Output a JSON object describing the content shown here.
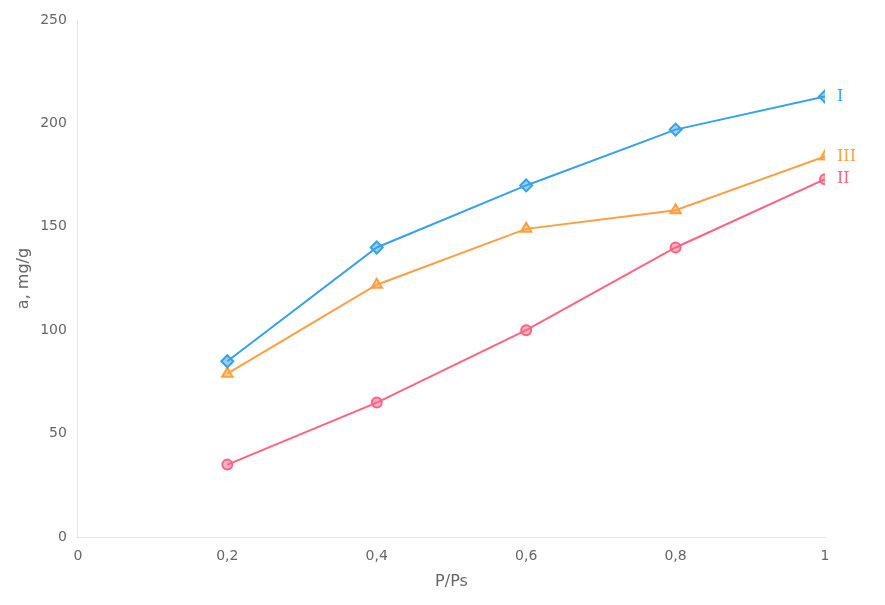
{
  "chart_data": {
    "type": "line",
    "xlabel": "P/Ps",
    "ylabel": "a, mg/g",
    "x": [
      0.2,
      0.4,
      0.6,
      0.8,
      1.0
    ],
    "series": [
      {
        "name": "I",
        "values": [
          85,
          140,
          170,
          197,
          213
        ],
        "marker": "diamond"
      },
      {
        "name": "II",
        "values": [
          35,
          65,
          100,
          140,
          173
        ],
        "marker": "circle"
      },
      {
        "name": "III",
        "values": [
          79,
          122,
          149,
          158,
          184
        ],
        "marker": "triangle"
      }
    ],
    "xlim": [
      0,
      1.0
    ],
    "ylim": [
      0,
      250
    ],
    "xticks": [
      0,
      {
        "value": 0.2,
        "label": "0,2"
      },
      {
        "value": 0.4,
        "label": "0,4"
      },
      {
        "value": 0.6,
        "label": "0,6"
      },
      {
        "value": 0.8,
        "label": "0,8"
      },
      1
    ],
    "yticks": [
      0,
      50,
      100,
      150,
      200,
      250
    ],
    "grid": false
  }
}
